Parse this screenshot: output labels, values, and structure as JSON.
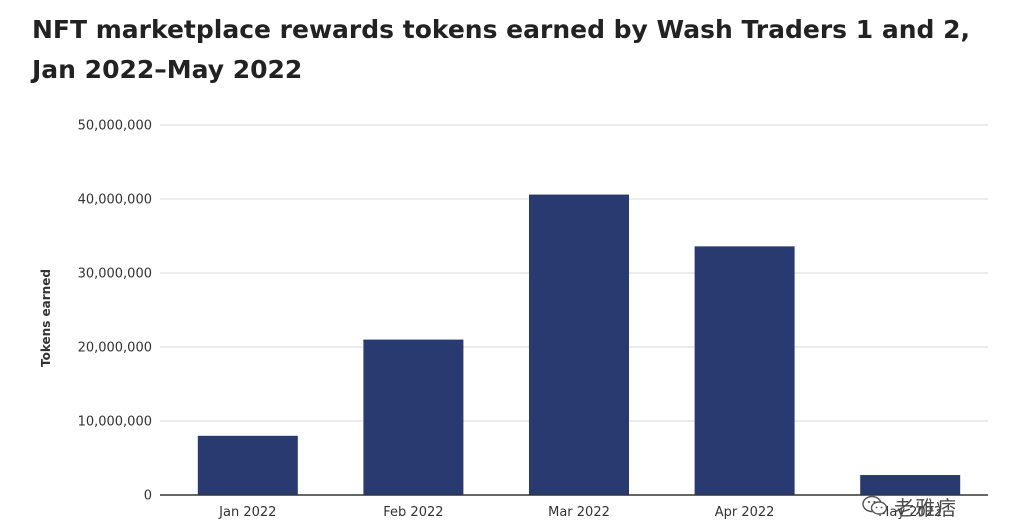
{
  "title": "NFT marketplace rewards tokens earned by Wash Traders 1 and 2, Jan 2022–May 2022",
  "watermark": {
    "text": "老雅痞",
    "icon": "wechat-bubble-icon"
  },
  "colors": {
    "bar": "#283a70",
    "grid": "#d9d9d9",
    "axis": "#333333",
    "text": "#333333"
  },
  "chart_data": {
    "type": "bar",
    "title": "NFT marketplace rewards tokens earned by Wash Traders 1 and 2, Jan 2022–May 2022",
    "xlabel": "",
    "ylabel": "Tokens earned",
    "categories": [
      "Jan 2022",
      "Feb 2022",
      "Mar 2022",
      "Apr 2022",
      "May 2022"
    ],
    "values": [
      8000000,
      21000000,
      40600000,
      33600000,
      2700000
    ],
    "ylim": [
      0,
      50000000
    ],
    "yticks": [
      0,
      10000000,
      20000000,
      30000000,
      40000000,
      50000000
    ],
    "ytick_labels": [
      "0",
      "10,000,000",
      "20,000,000",
      "30,000,000",
      "40,000,000",
      "50,000,000"
    ],
    "grid": true,
    "legend": "none"
  }
}
